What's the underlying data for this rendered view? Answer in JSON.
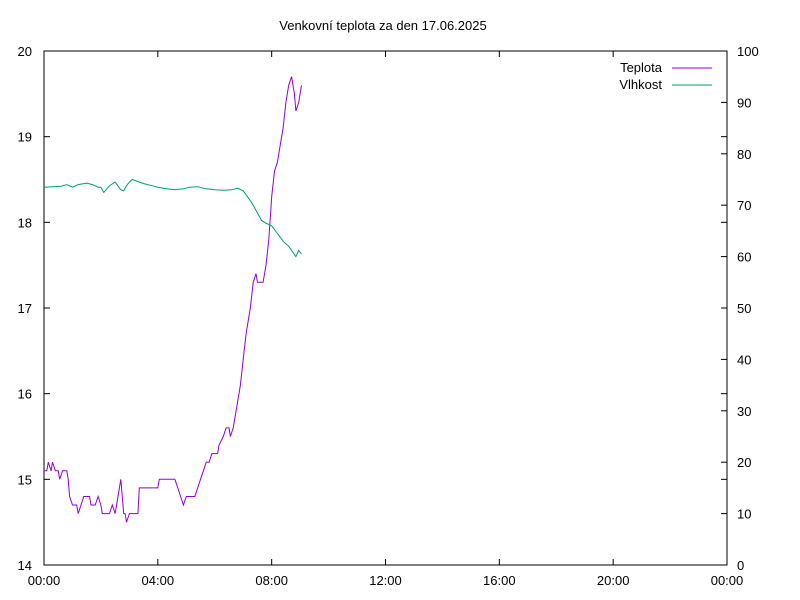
{
  "chart_data": {
    "type": "line",
    "title": "Venkovní teplota za den 17.06.2025",
    "x_ticks": [
      "00:00",
      "04:00",
      "08:00",
      "12:00",
      "16:00",
      "20:00",
      "00:00"
    ],
    "x_range_hours": [
      0,
      24
    ],
    "y_left_ticks": [
      "14",
      "15",
      "16",
      "17",
      "18",
      "19",
      "20"
    ],
    "y_left_range": [
      14,
      20
    ],
    "y_right_ticks": [
      "0",
      "10",
      "20",
      "30",
      "40",
      "50",
      "60",
      "70",
      "80",
      "90",
      "100"
    ],
    "y_right_range": [
      0,
      100
    ],
    "legend_position": "top-right",
    "grid": false,
    "series": [
      {
        "name": "Teplota",
        "axis": "left",
        "color": "#9400d3",
        "points": [
          [
            0.0,
            15.1
          ],
          [
            0.1,
            15.1
          ],
          [
            0.15,
            15.2
          ],
          [
            0.25,
            15.1
          ],
          [
            0.3,
            15.2
          ],
          [
            0.4,
            15.1
          ],
          [
            0.5,
            15.1
          ],
          [
            0.55,
            15.0
          ],
          [
            0.65,
            15.1
          ],
          [
            0.8,
            15.1
          ],
          [
            0.85,
            15.0
          ],
          [
            0.9,
            14.8
          ],
          [
            1.0,
            14.7
          ],
          [
            1.15,
            14.7
          ],
          [
            1.2,
            14.6
          ],
          [
            1.3,
            14.7
          ],
          [
            1.4,
            14.8
          ],
          [
            1.6,
            14.8
          ],
          [
            1.65,
            14.7
          ],
          [
            1.8,
            14.7
          ],
          [
            1.9,
            14.8
          ],
          [
            2.0,
            14.7
          ],
          [
            2.05,
            14.6
          ],
          [
            2.3,
            14.6
          ],
          [
            2.4,
            14.7
          ],
          [
            2.5,
            14.6
          ],
          [
            2.6,
            14.8
          ],
          [
            2.65,
            14.9
          ],
          [
            2.7,
            15.0
          ],
          [
            2.8,
            14.6
          ],
          [
            2.85,
            14.6
          ],
          [
            2.9,
            14.5
          ],
          [
            3.0,
            14.6
          ],
          [
            3.3,
            14.6
          ],
          [
            3.35,
            14.9
          ],
          [
            3.6,
            14.9
          ],
          [
            4.0,
            14.9
          ],
          [
            4.05,
            15.0
          ],
          [
            4.6,
            15.0
          ],
          [
            4.7,
            14.9
          ],
          [
            4.8,
            14.8
          ],
          [
            4.9,
            14.7
          ],
          [
            5.0,
            14.8
          ],
          [
            5.1,
            14.8
          ],
          [
            5.3,
            14.8
          ],
          [
            5.4,
            14.9
          ],
          [
            5.5,
            15.0
          ],
          [
            5.6,
            15.1
          ],
          [
            5.7,
            15.2
          ],
          [
            5.8,
            15.2
          ],
          [
            5.9,
            15.3
          ],
          [
            6.1,
            15.3
          ],
          [
            6.15,
            15.4
          ],
          [
            6.3,
            15.5
          ],
          [
            6.4,
            15.6
          ],
          [
            6.5,
            15.6
          ],
          [
            6.55,
            15.5
          ],
          [
            6.65,
            15.6
          ],
          [
            6.75,
            15.8
          ],
          [
            6.9,
            16.1
          ],
          [
            7.0,
            16.4
          ],
          [
            7.1,
            16.7
          ],
          [
            7.25,
            17.0
          ],
          [
            7.35,
            17.3
          ],
          [
            7.45,
            17.4
          ],
          [
            7.5,
            17.3
          ],
          [
            7.7,
            17.3
          ],
          [
            7.8,
            17.5
          ],
          [
            7.9,
            17.8
          ],
          [
            8.0,
            18.3
          ],
          [
            8.1,
            18.6
          ],
          [
            8.2,
            18.7
          ],
          [
            8.3,
            18.9
          ],
          [
            8.4,
            19.1
          ],
          [
            8.5,
            19.4
          ],
          [
            8.6,
            19.6
          ],
          [
            8.7,
            19.7
          ],
          [
            8.8,
            19.5
          ],
          [
            8.85,
            19.3
          ],
          [
            8.95,
            19.4
          ],
          [
            9.05,
            19.6
          ]
        ]
      },
      {
        "name": "Vlhkost",
        "axis": "right",
        "color": "#009e73",
        "points": [
          [
            0.0,
            73.5
          ],
          [
            0.3,
            73.6
          ],
          [
            0.6,
            73.7
          ],
          [
            0.8,
            74.0
          ],
          [
            1.0,
            73.5
          ],
          [
            1.2,
            74.0
          ],
          [
            1.5,
            74.3
          ],
          [
            1.7,
            74.0
          ],
          [
            1.9,
            73.5
          ],
          [
            2.0,
            73.5
          ],
          [
            2.1,
            72.5
          ],
          [
            2.3,
            73.8
          ],
          [
            2.5,
            74.5
          ],
          [
            2.7,
            73.0
          ],
          [
            2.8,
            72.8
          ],
          [
            2.9,
            73.8
          ],
          [
            3.0,
            74.5
          ],
          [
            3.1,
            75.0
          ],
          [
            3.2,
            74.8
          ],
          [
            3.3,
            74.6
          ],
          [
            3.5,
            74.2
          ],
          [
            3.8,
            73.8
          ],
          [
            4.0,
            73.5
          ],
          [
            4.3,
            73.2
          ],
          [
            4.6,
            73.0
          ],
          [
            4.9,
            73.2
          ],
          [
            5.1,
            73.5
          ],
          [
            5.4,
            73.6
          ],
          [
            5.7,
            73.2
          ],
          [
            6.0,
            73.0
          ],
          [
            6.3,
            72.9
          ],
          [
            6.6,
            73.0
          ],
          [
            6.8,
            73.3
          ],
          [
            7.0,
            72.8
          ],
          [
            7.1,
            72.0
          ],
          [
            7.3,
            70.5
          ],
          [
            7.5,
            68.5
          ],
          [
            7.65,
            67.0
          ],
          [
            7.8,
            66.5
          ],
          [
            8.0,
            66.0
          ],
          [
            8.2,
            64.5
          ],
          [
            8.4,
            63.0
          ],
          [
            8.6,
            62.0
          ],
          [
            8.75,
            60.8
          ],
          [
            8.85,
            60.0
          ],
          [
            8.95,
            61.2
          ],
          [
            9.05,
            60.5
          ]
        ]
      }
    ]
  }
}
